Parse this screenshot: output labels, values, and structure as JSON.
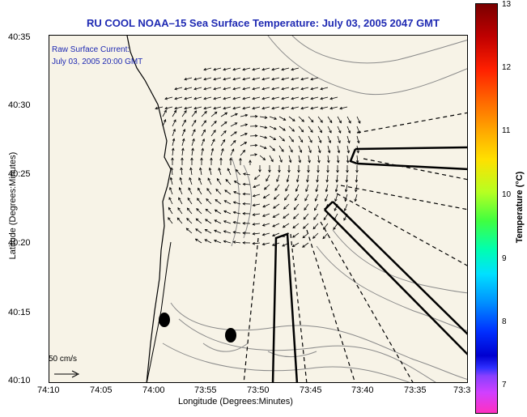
{
  "title": "RU COOL  NOAA–15  Sea Surface Temperature:  July 03, 2005 2047 GMT",
  "inset": {
    "line1": "Raw Surface Current:",
    "line2": "July 03, 2005 20:00 GMT"
  },
  "axes": {
    "xlabel": "Longitude (Degrees:Minutes)",
    "ylabel": "Latitude (Degrees:Minutes)",
    "xticks": [
      "74:10",
      "74:05",
      "74:00",
      "73:55",
      "73:50",
      "73:45",
      "73:40",
      "73:35",
      "73:3"
    ],
    "yticks": [
      "40:35",
      "40:30",
      "40:25",
      "40:20",
      "40:15",
      "40:10"
    ]
  },
  "scale": {
    "label": "50 cm/s"
  },
  "colorbar": {
    "label": "Temperature (°C)",
    "ticks": [
      "13",
      "12",
      "11",
      "10",
      "9",
      "8",
      "7"
    ]
  },
  "colors": {
    "title": "#1f2ab3",
    "land": "#f7f3e7",
    "contour": "#8a8a8a",
    "arrow": "#000000"
  }
}
